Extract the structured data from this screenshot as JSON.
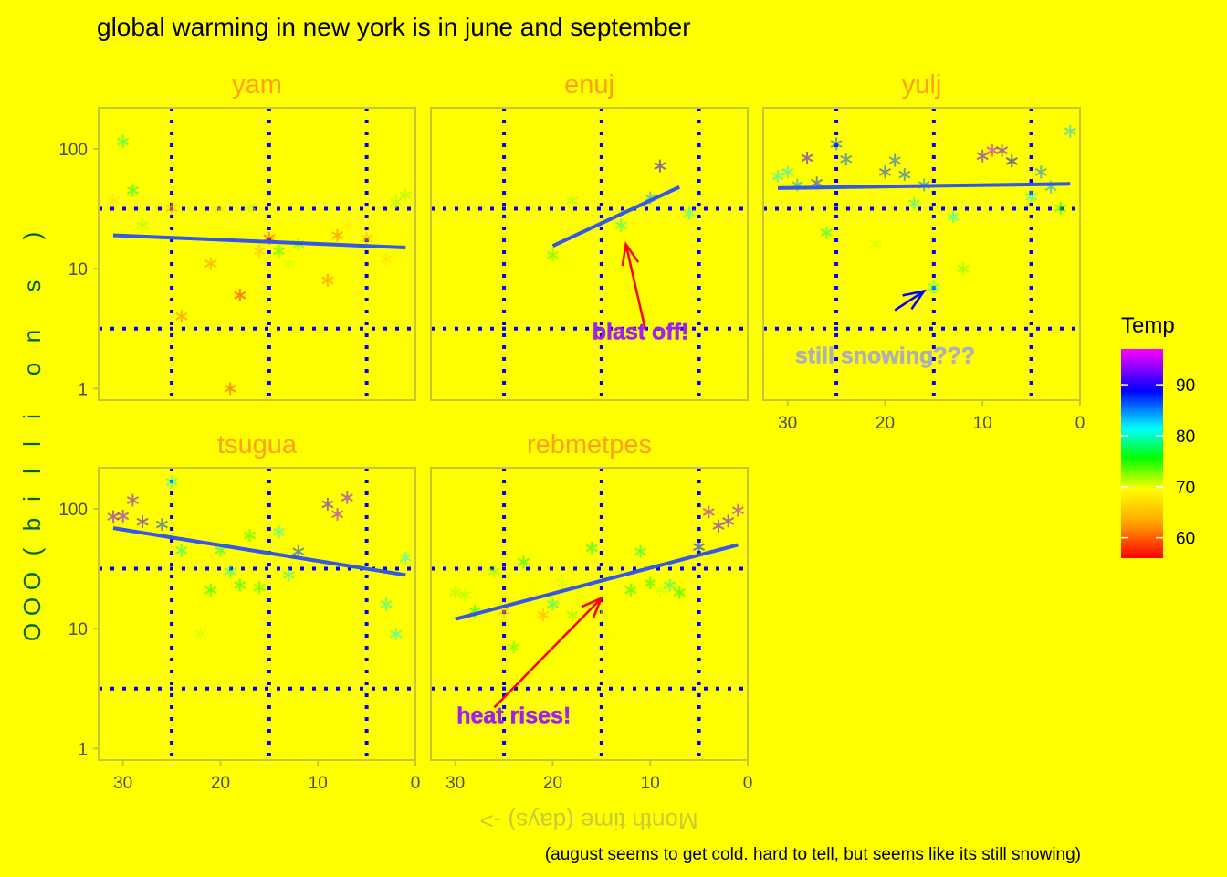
{
  "chart_data": {
    "type": "scatter",
    "title": "global warming in new york is in june and september",
    "caption": "(august seems to get cold. hard to tell, but seems like its still snowing)",
    "xlabel": "Month time (days) ->",
    "ylabel": "OOO(billions)",
    "ylabel_chars": [
      "O",
      "O",
      "O",
      "(",
      "b",
      "i",
      "l",
      "l",
      "i",
      "o",
      "n",
      "s",
      ")"
    ],
    "x_scale": "reversed",
    "y_scale": "log10",
    "xlim": [
      32.5,
      0
    ],
    "ylim": [
      0.8,
      220
    ],
    "x_ticks": [
      30,
      20,
      10,
      0
    ],
    "x_tick_labels": [
      "30",
      "20",
      "10",
      "0"
    ],
    "y_ticks": [
      1,
      10,
      100
    ],
    "y_tick_labels": [
      "1",
      "10",
      "100"
    ],
    "x_grid": [
      25,
      15,
      5
    ],
    "y_grid": [
      3.16,
      31.6
    ],
    "legend": {
      "title": "Temp",
      "position": "right",
      "ticks": [
        60,
        70,
        80,
        90
      ],
      "tick_labels": [
        "60",
        "70",
        "80",
        "90"
      ],
      "range": [
        56,
        97
      ]
    },
    "colors": {
      "background": "#ffff00",
      "panel_border": "#c6c633",
      "strip_text": "#ff9f1c",
      "grid": "#0000ff",
      "trend": "#3358e6",
      "ylabel": "#006400",
      "xlabel": "#c9c93a",
      "tick_text": "#4d4d4d"
    },
    "panels": [
      {
        "name": "yam",
        "points": [
          [
            31,
            37,
            67
          ],
          [
            30,
            115,
            78
          ],
          [
            29,
            45,
            77
          ],
          [
            28,
            23,
            72
          ],
          [
            25,
            32,
            63
          ],
          [
            24,
            4,
            61
          ],
          [
            22,
            11,
            70
          ],
          [
            21,
            11,
            62
          ],
          [
            20,
            31,
            68
          ],
          [
            19,
            1,
            59
          ],
          [
            18,
            6,
            57
          ],
          [
            17,
            33,
            71
          ],
          [
            16,
            14,
            64
          ],
          [
            15,
            18,
            59
          ],
          [
            14,
            14,
            75
          ],
          [
            13,
            11,
            71
          ],
          [
            12,
            16,
            74
          ],
          [
            9,
            8,
            61
          ],
          [
            8,
            19,
            61
          ],
          [
            7,
            23,
            68
          ],
          [
            5,
            18,
            64
          ],
          [
            3,
            12,
            67
          ],
          [
            2,
            36,
            72
          ],
          [
            1,
            41,
            72
          ]
        ],
        "trend": [
          [
            31,
            19
          ],
          [
            1,
            15
          ]
        ]
      },
      {
        "name": "enuj",
        "points": [
          [
            20,
            13,
            74
          ],
          [
            19,
            12,
            70
          ],
          [
            18,
            37,
            72
          ],
          [
            17,
            22,
            69
          ],
          [
            13,
            23,
            79
          ],
          [
            10,
            39,
            84
          ],
          [
            9,
            72,
            90
          ],
          [
            6,
            29,
            80
          ]
        ],
        "trend": [
          [
            20,
            15.5
          ],
          [
            7,
            48
          ]
        ]
      },
      {
        "name": "yulj",
        "points": [
          [
            31,
            59,
            81
          ],
          [
            30,
            64,
            82
          ],
          [
            29,
            50,
            84
          ],
          [
            28,
            84,
            91
          ],
          [
            27,
            52,
            87
          ],
          [
            25,
            110,
            86
          ],
          [
            24,
            82,
            86
          ],
          [
            21,
            16,
            71
          ],
          [
            20,
            64,
            87
          ],
          [
            19,
            80,
            86
          ],
          [
            18,
            61,
            86
          ],
          [
            17,
            35,
            80
          ],
          [
            16,
            50,
            85
          ],
          [
            15,
            7,
            80
          ],
          [
            13,
            27,
            81
          ],
          [
            12,
            10,
            73
          ],
          [
            26,
            20,
            78
          ],
          [
            10,
            87,
            92
          ],
          [
            9,
            97,
            95
          ],
          [
            8,
            97,
            92
          ],
          [
            7,
            79,
            89
          ],
          [
            5,
            40,
            81
          ],
          [
            4,
            64,
            85
          ],
          [
            3,
            48,
            84
          ],
          [
            2,
            32,
            76
          ],
          [
            1,
            140,
            83
          ]
        ],
        "trend": [
          [
            31,
            47
          ],
          [
            1,
            51
          ]
        ]
      },
      {
        "name": "tsugua",
        "points": [
          [
            31,
            86,
            93
          ],
          [
            30,
            87,
            93
          ],
          [
            29,
            118,
            93
          ],
          [
            28,
            78,
            91
          ],
          [
            26,
            74,
            87
          ],
          [
            25,
            168,
            81
          ],
          [
            24,
            45,
            79
          ],
          [
            22,
            9,
            71
          ],
          [
            21,
            21,
            76
          ],
          [
            20,
            45,
            78
          ],
          [
            19,
            30,
            80
          ],
          [
            18,
            23,
            77
          ],
          [
            17,
            60,
            75
          ],
          [
            16,
            22,
            75
          ],
          [
            14,
            64,
            81
          ],
          [
            13,
            28,
            80
          ],
          [
            12,
            44,
            87
          ],
          [
            9,
            109,
            92
          ],
          [
            8,
            90,
            94
          ],
          [
            7,
            124,
            93
          ],
          [
            3,
            16,
            80
          ],
          [
            2,
            9,
            81
          ],
          [
            1,
            39,
            81
          ]
        ],
        "trend": [
          [
            31,
            69
          ],
          [
            1,
            28
          ]
        ]
      },
      {
        "name": "rebmetpes",
        "points": [
          [
            30,
            20,
            72
          ],
          [
            29,
            19,
            72
          ],
          [
            28,
            14,
            76
          ],
          [
            26,
            30,
            73
          ],
          [
            25,
            14,
            64
          ],
          [
            24,
            7,
            74
          ],
          [
            23,
            36,
            76
          ],
          [
            22,
            23,
            70
          ],
          [
            21,
            13,
            63
          ],
          [
            20,
            16,
            79
          ],
          [
            19,
            24,
            71
          ],
          [
            18,
            13,
            73
          ],
          [
            17,
            19,
            70
          ],
          [
            16,
            47,
            77
          ],
          [
            15,
            13,
            69
          ],
          [
            14,
            9,
            69
          ],
          [
            12,
            21,
            75
          ],
          [
            11,
            44,
            78
          ],
          [
            10,
            24,
            75
          ],
          [
            9,
            21,
            71
          ],
          [
            8,
            23,
            79
          ],
          [
            7,
            20,
            76
          ],
          [
            5,
            48,
            88
          ],
          [
            4,
            94,
            94
          ],
          [
            3,
            72,
            92
          ],
          [
            2,
            79,
            92
          ],
          [
            1,
            97,
            94
          ]
        ],
        "trend": [
          [
            30,
            12
          ],
          [
            1,
            50
          ]
        ]
      }
    ],
    "annotations": [
      {
        "panel": "enuj",
        "text": "blast off!",
        "color": "#a020f0",
        "text_at": [
          11,
          3
        ],
        "arrow_from": [
          10.5,
          3.1
        ],
        "arrow_to": [
          12.5,
          16
        ],
        "arrow_color": "#ff0000"
      },
      {
        "panel": "yulj",
        "text": "still snowing???",
        "color": "#b0b0b0",
        "text_at": [
          20,
          1.9
        ],
        "arrow_from": [
          19,
          4.5
        ],
        "arrow_to": [
          16,
          6.5
        ],
        "arrow_color": "#0000ff"
      },
      {
        "panel": "rebmetpes",
        "text": "heat rises!",
        "color": "#a020f0",
        "text_at": [
          24,
          1.9
        ],
        "arrow_from": [
          26,
          2.2
        ],
        "arrow_to": [
          15,
          18
        ],
        "arrow_color": "#ff0000"
      }
    ]
  }
}
